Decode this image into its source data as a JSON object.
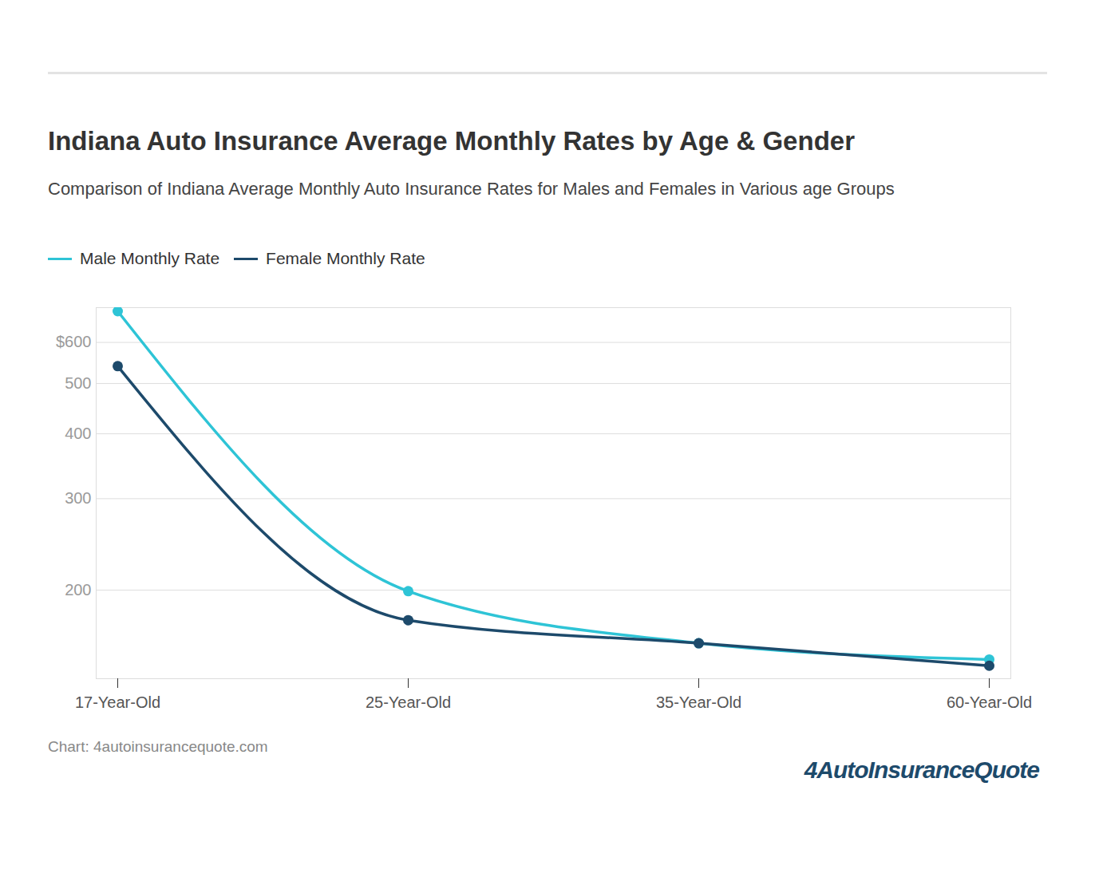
{
  "chart_data": {
    "type": "line",
    "title": "Indiana Auto Insurance Average Monthly Rates by Age & Gender",
    "subtitle": "Comparison of Indiana Average Monthly Auto Insurance Rates for Males and Females in Various age Groups",
    "categories": [
      "17-Year-Old",
      "25-Year-Old",
      "35-Year-Old",
      "60-Year-Old"
    ],
    "series": [
      {
        "name": "Male Monthly Rate",
        "color": "#2ec4d6",
        "values": [
          689,
          199,
          158,
          147
        ]
      },
      {
        "name": "Female Monthly Rate",
        "color": "#1d4a6b",
        "values": [
          540,
          175,
          158,
          143
        ]
      }
    ],
    "ylim": [
      135,
      700
    ],
    "yticks": [
      200,
      300,
      400,
      500,
      {
        "value": 600,
        "label": "$600"
      }
    ],
    "log": "y",
    "grid": true,
    "legend": "top-left",
    "marker": "circle",
    "caption": "Chart: 4autoinsurancequote.com",
    "logo": "4AutoInsuranceQuote"
  }
}
